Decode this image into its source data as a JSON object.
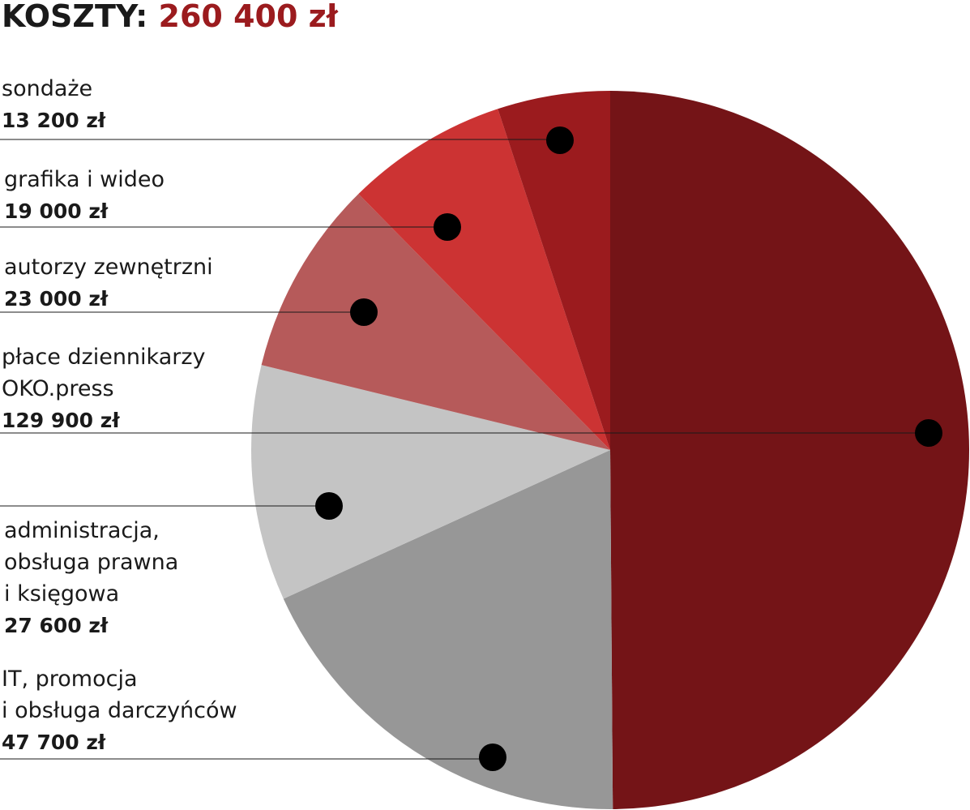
{
  "title": {
    "label": "KOSZTY",
    "separator": ": ",
    "total": "260 400 zł"
  },
  "chart_data": {
    "type": "pie",
    "title": "KOSZTY: 260 400 zł",
    "total": 260400,
    "unit": "zł",
    "slices": [
      {
        "label_lines": [
          "płace dziennikarzy",
          "OKO.press"
        ],
        "value": 129900,
        "value_label": "129 900 zł",
        "color": "#741417"
      },
      {
        "label_lines": [
          "IT, promocja",
          "i obsługa darczyńców"
        ],
        "value": 47700,
        "value_label": "47 700 zł",
        "color": "#979797"
      },
      {
        "label_lines": [
          "administracja,",
          "obsługa prawna",
          "i księgowa"
        ],
        "value": 27600,
        "value_label": "27 600 zł",
        "color": "#c4c4c4"
      },
      {
        "label_lines": [
          "autorzy zewnętrzni"
        ],
        "value": 23000,
        "value_label": "23 000 zł",
        "color": "#b65a5a"
      },
      {
        "label_lines": [
          "grafika i wideo"
        ],
        "value": 19000,
        "value_label": "19 000 zł",
        "color": "#cc3333"
      },
      {
        "label_lines": [
          "sondaże"
        ],
        "value": 13200,
        "value_label": "13 200 zł",
        "color": "#9b1b1e"
      }
    ]
  }
}
